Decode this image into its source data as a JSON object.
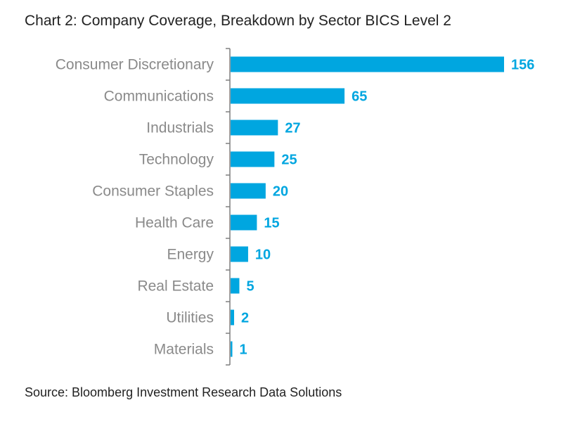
{
  "chart_data": {
    "type": "bar",
    "orientation": "horizontal",
    "title": "Chart 2: Company Coverage, Breakdown by Sector BICS Level 2",
    "categories": [
      "Consumer Discretionary",
      "Communications",
      "Industrials",
      "Technology",
      "Consumer Staples",
      "Health Care",
      "Energy",
      "Real Estate",
      "Utilities",
      "Materials"
    ],
    "values": [
      156,
      65,
      27,
      25,
      20,
      15,
      10,
      5,
      2,
      1
    ],
    "xlabel": "",
    "ylabel": "",
    "xlim": [
      0,
      156
    ],
    "bar_color": "#00a6e0",
    "source": "Source: Bloomberg Investment Research Data Solutions"
  }
}
